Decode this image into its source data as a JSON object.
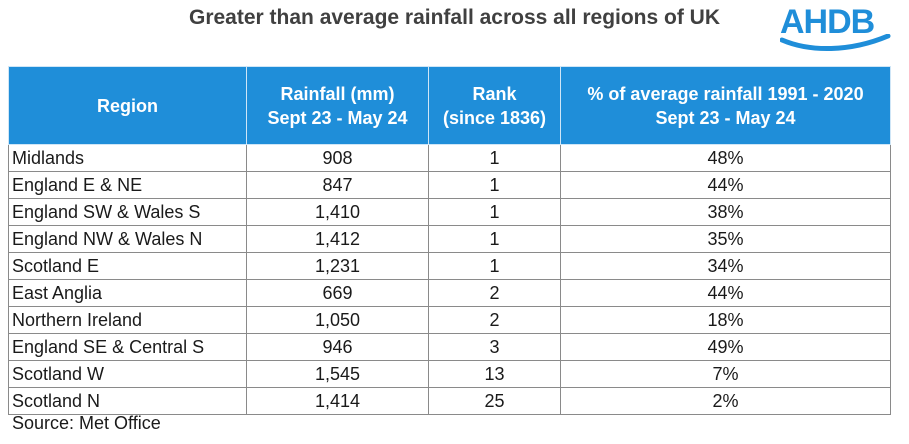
{
  "title": "Greater than average rainfall across all regions of UK",
  "logo": {
    "text": "AHDB",
    "color": "#1f8ed9"
  },
  "chart_data": {
    "type": "table",
    "columns": [
      {
        "line1": "Region",
        "line2": ""
      },
      {
        "line1": "Rainfall (mm)",
        "line2": "Sept 23 - May 24"
      },
      {
        "line1": "Rank",
        "line2": "(since 1836)"
      },
      {
        "line1": "% of average rainfall 1991 - 2020",
        "line2": "Sept 23 - May 24"
      }
    ],
    "rows": [
      {
        "region": "Midlands",
        "rainfall": "908",
        "rank": "1",
        "pct": "48%"
      },
      {
        "region": "England E & NE",
        "rainfall": "847",
        "rank": "1",
        "pct": "44%"
      },
      {
        "region": "England SW & Wales S",
        "rainfall": "1,410",
        "rank": "1",
        "pct": "38%"
      },
      {
        "region": "England NW & Wales N",
        "rainfall": "1,412",
        "rank": "1",
        "pct": "35%"
      },
      {
        "region": "Scotland E",
        "rainfall": "1,231",
        "rank": "1",
        "pct": "34%"
      },
      {
        "region": "East Anglia",
        "rainfall": "669",
        "rank": "2",
        "pct": "44%"
      },
      {
        "region": "Northern Ireland",
        "rainfall": "1,050",
        "rank": "2",
        "pct": "18%"
      },
      {
        "region": "England SE & Central S",
        "rainfall": "946",
        "rank": "3",
        "pct": "49%"
      },
      {
        "region": "Scotland W",
        "rainfall": "1,545",
        "rank": "13",
        "pct": "7%"
      },
      {
        "region": "Scotland N",
        "rainfall": "1,414",
        "rank": "25",
        "pct": "2%"
      }
    ],
    "header_color": "#1f8ed9"
  },
  "source": "Source: Met Office"
}
